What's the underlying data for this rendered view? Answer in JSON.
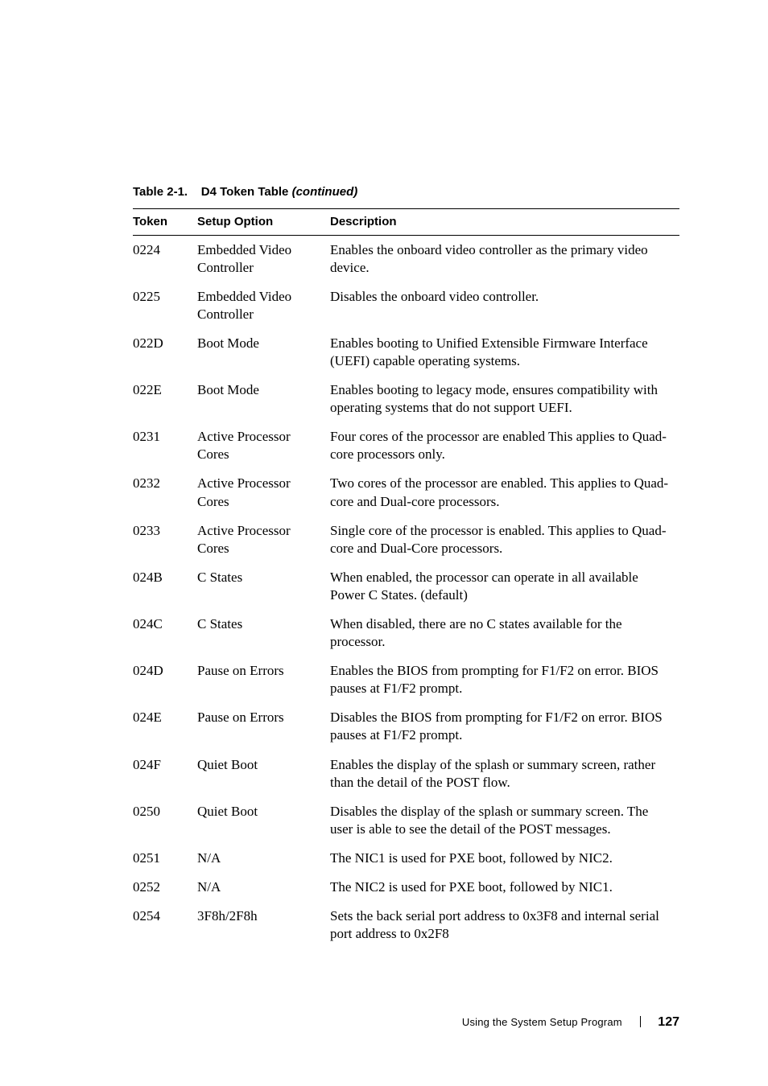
{
  "caption": {
    "prefix": "Table 2-1.",
    "title": "D4 Token Table",
    "continued": "(continued)"
  },
  "headers": {
    "token": "Token",
    "setup": "Setup Option",
    "desc": "Description"
  },
  "rows": [
    {
      "token": "0224",
      "setup": "Embedded Video Controller",
      "desc": "Enables the onboard video controller as the primary video device."
    },
    {
      "token": "0225",
      "setup": "Embedded Video Controller",
      "desc": "Disables the onboard video controller."
    },
    {
      "token": "022D",
      "setup": "Boot Mode",
      "desc": "Enables booting to Unified Extensible Firmware Interface (UEFI) capable operating systems."
    },
    {
      "token": "022E",
      "setup": "Boot Mode",
      "desc": "Enables booting to legacy mode, ensures compatibility with operating systems that do not support UEFI."
    },
    {
      "token": "0231",
      "setup": "Active Processor Cores",
      "desc": "Four cores of the processor are enabled This applies to Quad-core processors only."
    },
    {
      "token": "0232",
      "setup": "Active Processor Cores",
      "desc": "Two cores of the processor are enabled. This applies to Quad-core and Dual-core processors."
    },
    {
      "token": "0233",
      "setup": "Active Processor Cores",
      "desc": "Single core of the processor is enabled. This applies to Quad-core and Dual-Core processors."
    },
    {
      "token": "024B",
      "setup": "C States",
      "desc": "When enabled, the processor can operate in all available Power C States. (default)"
    },
    {
      "token": "024C",
      "setup": "C States",
      "desc": "When disabled, there are no C states available for the processor."
    },
    {
      "token": "024D",
      "setup": "Pause on Errors",
      "desc": "Enables the BIOS from prompting for F1/F2 on error. BIOS pauses at F1/F2 prompt."
    },
    {
      "token": "024E",
      "setup": "Pause on Errors",
      "desc": "Disables the BIOS from prompting for F1/F2 on error. BIOS pauses at F1/F2 prompt."
    },
    {
      "token": "024F",
      "setup": "Quiet Boot",
      "desc": "Enables the display of the splash or summary screen, rather than the detail of the POST flow."
    },
    {
      "token": "0250",
      "setup": "Quiet Boot",
      "desc": "Disables the display of the splash or summary screen. The user is able to see the detail of the POST messages."
    },
    {
      "token": "0251",
      "setup": "N/A",
      "desc": "The NIC1 is used for PXE boot, followed by NIC2."
    },
    {
      "token": "0252",
      "setup": "N/A",
      "desc": "The NIC2 is used for PXE boot, followed by NIC1."
    },
    {
      "token": "0254",
      "setup": "3F8h/2F8h",
      "desc": "Sets the back serial port address to 0x3F8 and internal serial port address to 0x2F8"
    }
  ],
  "footer": {
    "section": "Using the System Setup Program",
    "page": "127"
  }
}
